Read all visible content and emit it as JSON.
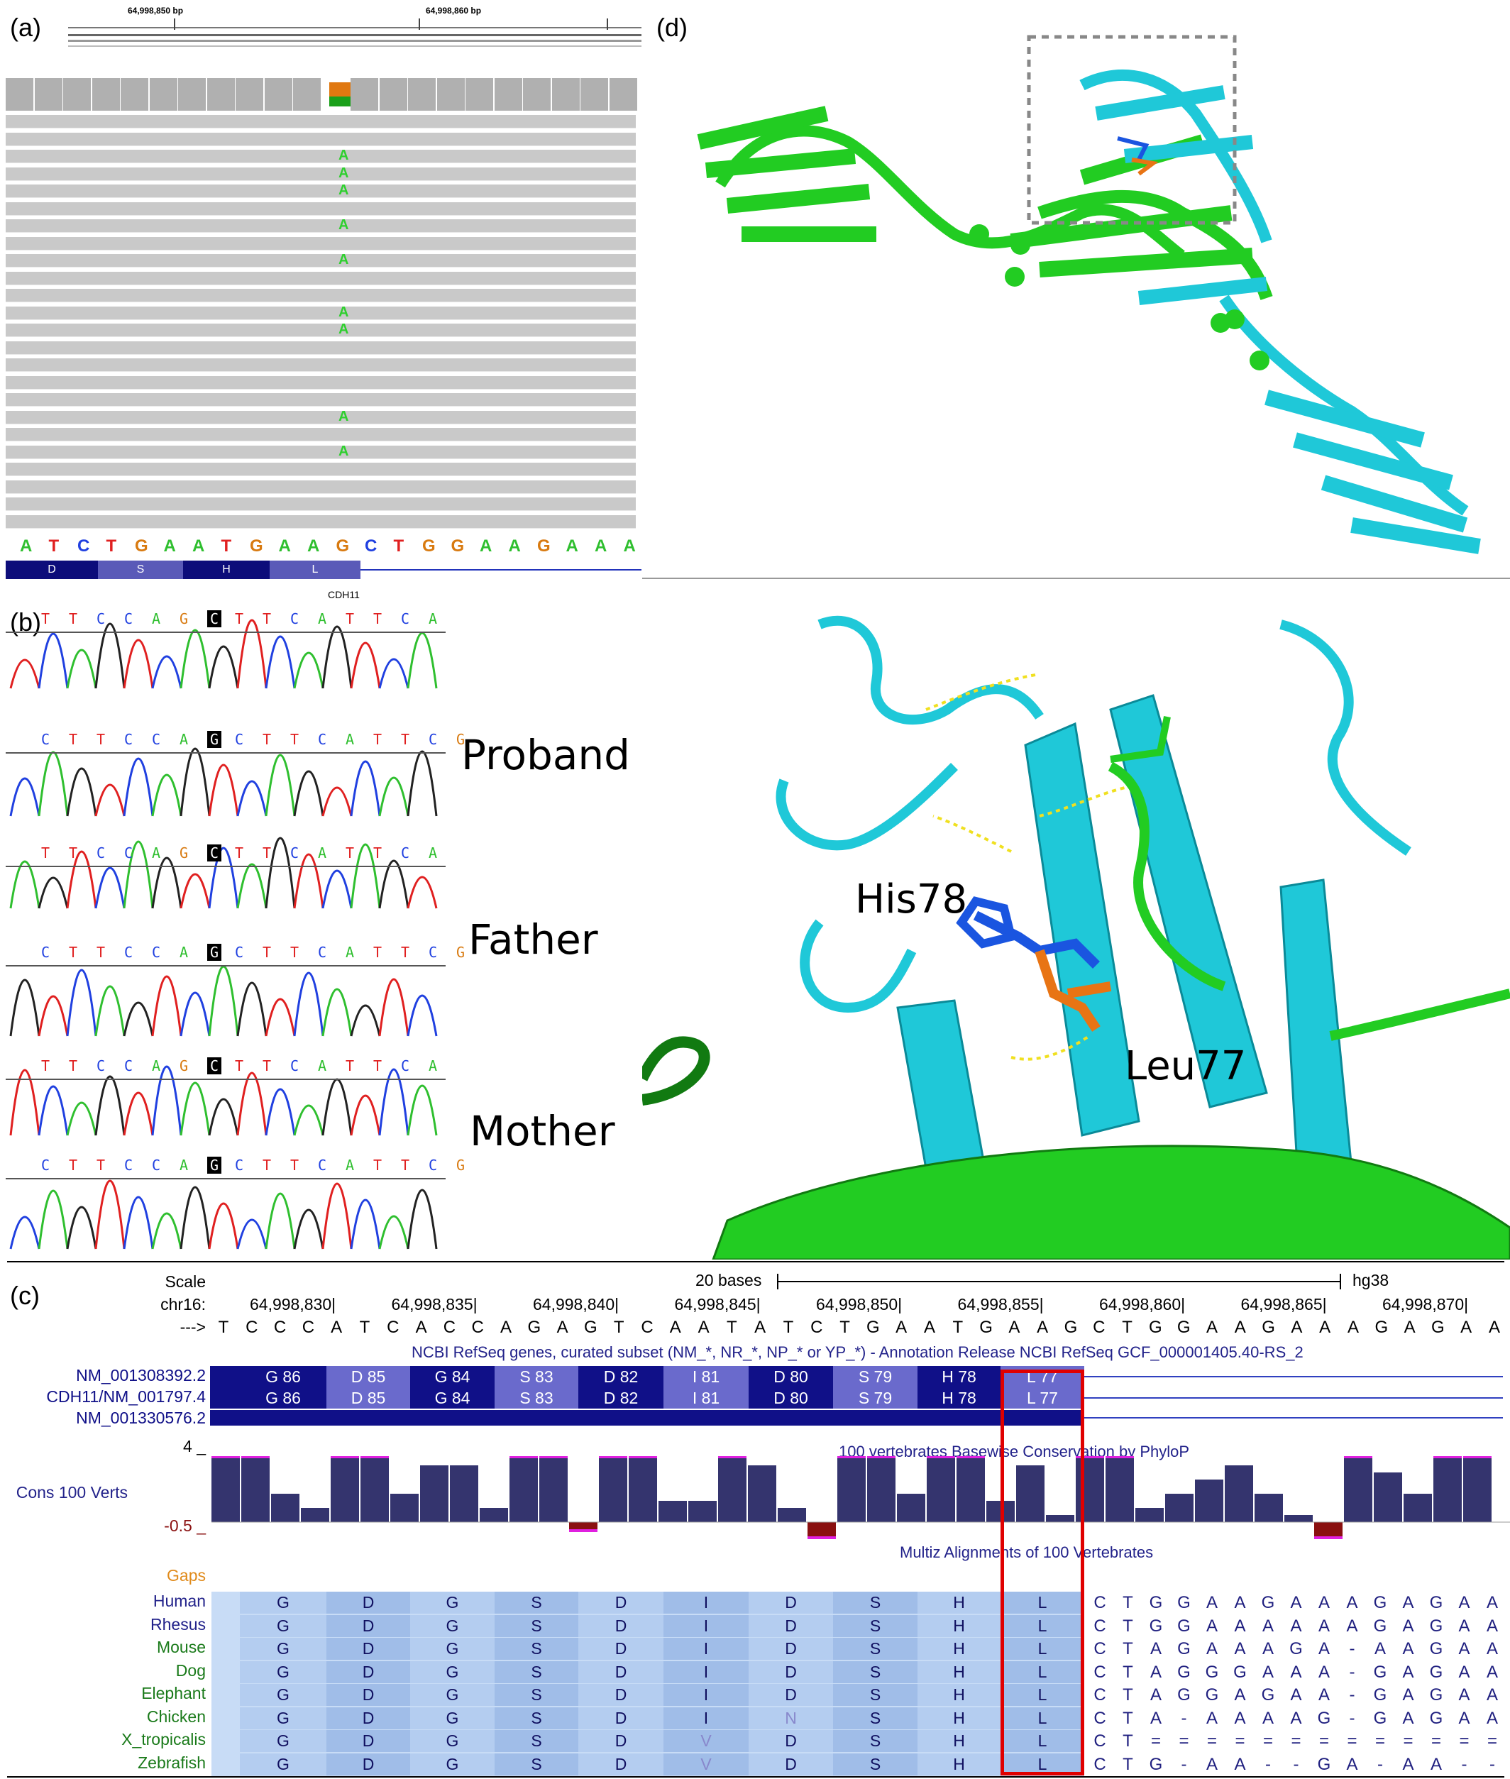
{
  "panel_a": {
    "label": "(a)",
    "coords": [
      "64,998,850 bp",
      "64,998,860 bp"
    ],
    "mutant_base": "A",
    "mutant_rows": [
      2,
      3,
      4,
      6,
      8,
      11,
      12,
      17,
      19
    ],
    "reference": [
      "A",
      "T",
      "C",
      "T",
      "G",
      "A",
      "A",
      "T",
      "G",
      "A",
      "A",
      "G",
      "C",
      "T",
      "G",
      "G",
      "A",
      "A",
      "G",
      "A",
      "A",
      "A"
    ],
    "aa_track": [
      "D",
      "S",
      "H",
      "L"
    ],
    "gene": "CDH11"
  },
  "panel_b": {
    "label": "(b)",
    "seq_forward": "TTCCAGCTTCATTCA",
    "seq_reverse": "CTTCCAGCTTCATTCG",
    "samples": [
      "Proband",
      "Father",
      "Mother"
    ]
  },
  "panel_c": {
    "label": "(c)",
    "scale_label": "Scale",
    "scale_bases": "20 bases",
    "assembly": "hg38",
    "chrom": "chr16:",
    "positions": [
      "64,998,830",
      "64,998,835",
      "64,998,840",
      "64,998,845",
      "64,998,850",
      "64,998,855",
      "64,998,860",
      "64,998,865",
      "64,998,870"
    ],
    "strand_arrow": "--->",
    "dna": [
      "T",
      "C",
      "C",
      "C",
      "A",
      "T",
      "C",
      "A",
      "C",
      "C",
      "A",
      "G",
      "A",
      "G",
      "T",
      "C",
      "A",
      "A",
      "T",
      "A",
      "T",
      "C",
      "T",
      "G",
      "A",
      "A",
      "T",
      "G",
      "A",
      "A",
      "G",
      "C",
      "T",
      "G",
      "G",
      "A",
      "A",
      "G",
      "A",
      "A",
      "A",
      "G",
      "A",
      "G",
      "A",
      "A"
    ],
    "refseq_title": "NCBI RefSeq genes, curated subset (NM_*, NR_*, NP_* or YP_*) - Annotation Release NCBI RefSeq GCF_000001405.40-RS_2",
    "transcripts": [
      "NM_001308392.2",
      "CDH11/NM_001797.4",
      "NM_001330576.2"
    ],
    "exons": [
      "G 86",
      "D 85",
      "G 84",
      "S 83",
      "D 82",
      "I 81",
      "D 80",
      "S 79",
      "H 78",
      "L 77"
    ],
    "cons_title": "100 vertebrates Basewise Conservation by PhyloP",
    "cons_label": "Cons 100 Verts",
    "cons_max": "4 _",
    "cons_min": "-0.5 _",
    "multiz_title": "Multiz Alignments of 100 Vertebrates",
    "gaps_label": "Gaps",
    "species": [
      {
        "name": "Human",
        "aa": [
          "G",
          "D",
          "G",
          "S",
          "D",
          "I",
          "D",
          "S",
          "H",
          "L"
        ],
        "nt": [
          "C",
          "T",
          "G",
          "G",
          "A",
          "A",
          "G",
          "A",
          "A",
          "A",
          "G",
          "A",
          "G",
          "A",
          "A"
        ]
      },
      {
        "name": "Rhesus",
        "aa": [
          "G",
          "D",
          "G",
          "S",
          "D",
          "I",
          "D",
          "S",
          "H",
          "L"
        ],
        "nt": [
          "C",
          "T",
          "G",
          "G",
          "A",
          "A",
          "A",
          "A",
          "A",
          "A",
          "G",
          "A",
          "G",
          "A",
          "A"
        ]
      },
      {
        "name": "Mouse",
        "aa": [
          "G",
          "D",
          "G",
          "S",
          "D",
          "I",
          "D",
          "S",
          "H",
          "L"
        ],
        "nt": [
          "C",
          "T",
          "A",
          "G",
          "A",
          "A",
          "A",
          "G",
          "A",
          "-",
          "A",
          "A",
          "G",
          "A",
          "A"
        ]
      },
      {
        "name": "Dog",
        "aa": [
          "G",
          "D",
          "G",
          "S",
          "D",
          "I",
          "D",
          "S",
          "H",
          "L"
        ],
        "nt": [
          "C",
          "T",
          "A",
          "G",
          "G",
          "G",
          "A",
          "A",
          "A",
          "-",
          "G",
          "A",
          "G",
          "A",
          "A"
        ]
      },
      {
        "name": "Elephant",
        "aa": [
          "G",
          "D",
          "G",
          "S",
          "D",
          "I",
          "D",
          "S",
          "H",
          "L"
        ],
        "nt": [
          "C",
          "T",
          "A",
          "G",
          "G",
          "A",
          "G",
          "A",
          "A",
          "-",
          "G",
          "A",
          "G",
          "A",
          "A"
        ]
      },
      {
        "name": "Chicken",
        "aa": [
          "G",
          "D",
          "G",
          "S",
          "D",
          "I",
          "N",
          "S",
          "H",
          "L"
        ],
        "nt": [
          "C",
          "T",
          "A",
          "-",
          "A",
          "A",
          "A",
          "A",
          "G",
          "-",
          "G",
          "A",
          "G",
          "A",
          "A"
        ]
      },
      {
        "name": "X_tropicalis",
        "aa": [
          "G",
          "D",
          "G",
          "S",
          "D",
          "V",
          "D",
          "S",
          "H",
          "L"
        ],
        "nt": [
          "C",
          "T",
          "=",
          "=",
          "=",
          "=",
          "=",
          "=",
          "=",
          "=",
          "=",
          "=",
          "=",
          "=",
          "="
        ]
      },
      {
        "name": "Zebrafish",
        "aa": [
          "G",
          "D",
          "G",
          "S",
          "D",
          "V",
          "D",
          "S",
          "H",
          "L"
        ],
        "nt": [
          "C",
          "T",
          "G",
          "-",
          "A",
          "A",
          "-",
          "-",
          "G",
          "A",
          "-",
          "A",
          "A",
          "-",
          "-"
        ]
      }
    ]
  },
  "panel_d": {
    "label": "(d)",
    "residues": [
      "His78",
      "Leu77"
    ]
  },
  "colors": {
    "cyan_chain": "#1fc8d8",
    "green_chain": "#22cc22",
    "his_blue": "#1a55e0",
    "leu_orange": "#e87414",
    "exon_dark": "#101088",
    "exon_light": "#6a6acc",
    "highlight_box": "#e00000"
  }
}
